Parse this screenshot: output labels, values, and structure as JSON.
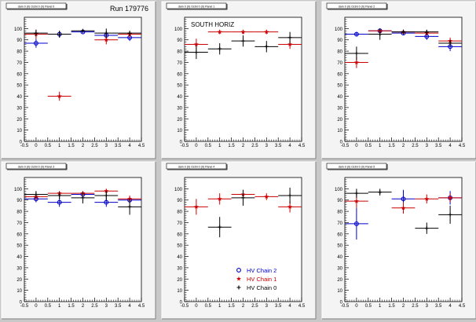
{
  "header": {
    "run_label": "Run 179776"
  },
  "chart_data": [
    {
      "type": "scatter",
      "pad_title": "dam 0 (0) Octnt 0 (0) Panel 0",
      "annotation": "",
      "xlim": [
        -0.5,
        4.5
      ],
      "ylim": [
        0,
        110
      ],
      "xticks": [
        "-0.5",
        "0",
        "0.5",
        "1",
        "1.5",
        "2",
        "2.5",
        "3",
        "3.5",
        "4",
        "4.5"
      ],
      "yticks": [
        "0",
        "10",
        "20",
        "30",
        "40",
        "50",
        "60",
        "70",
        "80",
        "90",
        "100"
      ],
      "grid": false,
      "series": [
        {
          "color": "#0000cc",
          "marker": "circle",
          "points": [
            {
              "x": 0,
              "y": 87,
              "xerr": 0.5,
              "yerr": 4
            },
            {
              "x": 1,
              "y": 95,
              "xerr": 0.5,
              "yerr": 3
            },
            {
              "x": 2,
              "y": 97,
              "xerr": 0.5,
              "yerr": 1
            },
            {
              "x": 3,
              "y": 94,
              "xerr": 0.5,
              "yerr": 3
            },
            {
              "x": 4,
              "y": 92,
              "xerr": 0.5,
              "yerr": 3
            }
          ]
        },
        {
          "color": "#cc0000",
          "marker": "star",
          "points": [
            {
              "x": 0,
              "y": 95,
              "xerr": 0.5,
              "yerr": 4
            },
            {
              "x": 1,
              "y": 40,
              "xerr": 0.5,
              "yerr": 4
            },
            {
              "x": 3,
              "y": 90,
              "xerr": 0.5,
              "yerr": 4
            },
            {
              "x": 4,
              "y": 95,
              "xerr": 0.5,
              "yerr": 3
            }
          ]
        },
        {
          "color": "#000000",
          "marker": "cross",
          "points": [
            {
              "x": 0,
              "y": 96,
              "xerr": 0.5,
              "yerr": 3
            },
            {
              "x": 1,
              "y": 95,
              "xerr": 0.5,
              "yerr": 3
            },
            {
              "x": 2,
              "y": 98,
              "xerr": 0.5,
              "yerr": 1
            },
            {
              "x": 3,
              "y": 96,
              "xerr": 0.5,
              "yerr": 4
            },
            {
              "x": 4,
              "y": 96,
              "xerr": 0.5,
              "yerr": 2
            }
          ]
        }
      ]
    },
    {
      "type": "scatter",
      "pad_title": "dam 0 (0) Octnt 0 (0) Panel 1",
      "annotation": "SOUTH HORIZ",
      "xlim": [
        -0.5,
        4.5
      ],
      "ylim": [
        0,
        110
      ],
      "xticks": [
        "-0.5",
        "0",
        "0.5",
        "1",
        "1.5",
        "2",
        "2.5",
        "3",
        "3.5",
        "4",
        "4.5"
      ],
      "yticks": [
        "0",
        "10",
        "20",
        "30",
        "40",
        "50",
        "60",
        "70",
        "80",
        "90",
        "100"
      ],
      "grid": false,
      "series": [
        {
          "color": "#cc0000",
          "marker": "star",
          "points": [
            {
              "x": 0,
              "y": 86,
              "xerr": 0.5,
              "yerr": 5
            },
            {
              "x": 1,
              "y": 97,
              "xerr": 0.5,
              "yerr": 2
            },
            {
              "x": 2,
              "y": 97,
              "xerr": 0.5,
              "yerr": 2
            },
            {
              "x": 3,
              "y": 97,
              "xerr": 0.5,
              "yerr": 2
            },
            {
              "x": 4,
              "y": 86,
              "xerr": 0.5,
              "yerr": 4
            }
          ]
        },
        {
          "color": "#000000",
          "marker": "cross",
          "points": [
            {
              "x": 0,
              "y": 79,
              "xerr": 0.5,
              "yerr": 6
            },
            {
              "x": 1,
              "y": 82,
              "xerr": 0.5,
              "yerr": 5
            },
            {
              "x": 2,
              "y": 89,
              "xerr": 0.5,
              "yerr": 5
            },
            {
              "x": 3,
              "y": 84,
              "xerr": 0.5,
              "yerr": 5
            },
            {
              "x": 4,
              "y": 92,
              "xerr": 0.5,
              "yerr": 5
            }
          ]
        }
      ]
    },
    {
      "type": "scatter",
      "pad_title": "dam 0 (0) Octnt 0 (0) Panel 2",
      "annotation": "",
      "xlim": [
        -0.5,
        4.5
      ],
      "ylim": [
        0,
        110
      ],
      "xticks": [
        "-0.5",
        "0",
        "0.5",
        "1",
        "1.5",
        "2",
        "2.5",
        "3",
        "3.5",
        "4",
        "4.5"
      ],
      "yticks": [
        "0",
        "10",
        "20",
        "30",
        "40",
        "50",
        "60",
        "70",
        "80",
        "90",
        "100"
      ],
      "grid": false,
      "series": [
        {
          "color": "#0000cc",
          "marker": "circle",
          "points": [
            {
              "x": 0,
              "y": 95,
              "xerr": 0.5,
              "yerr": 2
            },
            {
              "x": 1,
              "y": 98,
              "xerr": 0.5,
              "yerr": 2
            },
            {
              "x": 2,
              "y": 96,
              "xerr": 0.5,
              "yerr": 2
            },
            {
              "x": 3,
              "y": 93,
              "xerr": 0.5,
              "yerr": 3
            },
            {
              "x": 4,
              "y": 84,
              "xerr": 0.5,
              "yerr": 4
            }
          ]
        },
        {
          "color": "#cc0000",
          "marker": "star",
          "points": [
            {
              "x": 0,
              "y": 70,
              "xerr": 0.5,
              "yerr": 5
            },
            {
              "x": 1,
              "y": 98,
              "xerr": 0.5,
              "yerr": 2
            },
            {
              "x": 2,
              "y": 97,
              "xerr": 0.5,
              "yerr": 2
            },
            {
              "x": 3,
              "y": 96,
              "xerr": 0.5,
              "yerr": 2
            },
            {
              "x": 4,
              "y": 89,
              "xerr": 0.5,
              "yerr": 3
            }
          ]
        },
        {
          "color": "#000000",
          "marker": "cross",
          "points": [
            {
              "x": 0,
              "y": 78,
              "xerr": 0.5,
              "yerr": 6
            },
            {
              "x": 1,
              "y": 95,
              "xerr": 0.5,
              "yerr": 5
            },
            {
              "x": 2,
              "y": 97,
              "xerr": 0.5,
              "yerr": 2
            },
            {
              "x": 3,
              "y": 97,
              "xerr": 0.5,
              "yerr": 2
            },
            {
              "x": 4,
              "y": 87,
              "xerr": 0.5,
              "yerr": 3
            }
          ]
        }
      ]
    },
    {
      "type": "scatter",
      "pad_title": "dam 0 (0) Octnt 0 (0) Panel 3",
      "annotation": "",
      "xlim": [
        -0.5,
        4.5
      ],
      "ylim": [
        0,
        110
      ],
      "xticks": [
        "-0.5",
        "0",
        "0.5",
        "1",
        "1.5",
        "2",
        "2.5",
        "3",
        "3.5",
        "4",
        "4.5"
      ],
      "yticks": [
        "0",
        "10",
        "20",
        "30",
        "40",
        "50",
        "60",
        "70",
        "80",
        "90",
        "100"
      ],
      "grid": false,
      "series": [
        {
          "color": "#0000cc",
          "marker": "circle",
          "points": [
            {
              "x": 0,
              "y": 91,
              "xerr": 0.5,
              "yerr": 3
            },
            {
              "x": 1,
              "y": 88,
              "xerr": 0.5,
              "yerr": 4
            },
            {
              "x": 2,
              "y": 95,
              "xerr": 0.5,
              "yerr": 2
            },
            {
              "x": 3,
              "y": 88,
              "xerr": 0.5,
              "yerr": 4
            },
            {
              "x": 4,
              "y": 90,
              "xerr": 0.5,
              "yerr": 3
            }
          ]
        },
        {
          "color": "#cc0000",
          "marker": "star",
          "points": [
            {
              "x": 0,
              "y": 93,
              "xerr": 0.5,
              "yerr": 3
            },
            {
              "x": 1,
              "y": 96,
              "xerr": 0.5,
              "yerr": 2
            },
            {
              "x": 2,
              "y": 96,
              "xerr": 0.5,
              "yerr": 2
            },
            {
              "x": 3,
              "y": 98,
              "xerr": 0.5,
              "yerr": 2
            },
            {
              "x": 4,
              "y": 91,
              "xerr": 0.5,
              "yerr": 3
            }
          ]
        },
        {
          "color": "#000000",
          "marker": "cross",
          "points": [
            {
              "x": 0,
              "y": 95,
              "xerr": 0.5,
              "yerr": 3
            },
            {
              "x": 1,
              "y": 94,
              "xerr": 0.5,
              "yerr": 3
            },
            {
              "x": 2,
              "y": 92,
              "xerr": 0.5,
              "yerr": 5
            },
            {
              "x": 3,
              "y": 94,
              "xerr": 0.5,
              "yerr": 4
            },
            {
              "x": 4,
              "y": 84,
              "xerr": 0.5,
              "yerr": 7
            }
          ]
        }
      ]
    },
    {
      "type": "scatter",
      "pad_title": "dam 0 (0) Octnt 0 (0) Panel 4",
      "annotation": "",
      "xlim": [
        -0.5,
        4.5
      ],
      "ylim": [
        0,
        110
      ],
      "xticks": [
        "-0.5",
        "0",
        "0.5",
        "1",
        "1.5",
        "2",
        "2.5",
        "3",
        "3.5",
        "4",
        "4.5"
      ],
      "yticks": [
        "0",
        "10",
        "20",
        "30",
        "40",
        "50",
        "60",
        "70",
        "80",
        "90",
        "100"
      ],
      "grid": false,
      "legend": {
        "position": "bottom-right",
        "entries": [
          {
            "label": "HV Chain 2",
            "color": "#0000cc",
            "marker": "circle"
          },
          {
            "label": "HV Chain 1",
            "color": "#cc0000",
            "marker": "star"
          },
          {
            "label": "HV Chain 0",
            "color": "#000000",
            "marker": "cross"
          }
        ]
      },
      "series": [
        {
          "color": "#cc0000",
          "marker": "star",
          "points": [
            {
              "x": 0,
              "y": 84,
              "xerr": 0.5,
              "yerr": 7
            },
            {
              "x": 1,
              "y": 91,
              "xerr": 0.5,
              "yerr": 5
            },
            {
              "x": 2,
              "y": 95,
              "xerr": 0.5,
              "yerr": 4
            },
            {
              "x": 3,
              "y": 93,
              "xerr": 0.5,
              "yerr": 3
            },
            {
              "x": 4,
              "y": 84,
              "xerr": 0.5,
              "yerr": 5
            }
          ]
        },
        {
          "color": "#000000",
          "marker": "cross",
          "points": [
            {
              "x": 1,
              "y": 66,
              "xerr": 0.5,
              "yerr": 9
            },
            {
              "x": 2,
              "y": 92,
              "xerr": 0.5,
              "yerr": 7
            },
            {
              "x": 4,
              "y": 94,
              "xerr": 0.5,
              "yerr": 7
            }
          ]
        }
      ]
    },
    {
      "type": "scatter",
      "pad_title": "dam 0 (0) Octnt 0 (0) Panel 5",
      "annotation": "",
      "xlim": [
        -0.5,
        4.5
      ],
      "ylim": [
        0,
        110
      ],
      "xticks": [
        "-0.5",
        "0",
        "0.5",
        "1",
        "1.5",
        "2",
        "2.5",
        "3",
        "3.5",
        "4",
        "4.5"
      ],
      "yticks": [
        "0",
        "10",
        "20",
        "30",
        "40",
        "50",
        "60",
        "70",
        "80",
        "90",
        "100"
      ],
      "grid": false,
      "series": [
        {
          "color": "#0000cc",
          "marker": "circle",
          "points": [
            {
              "x": 0,
              "y": 69,
              "xerr": 0.5,
              "yerr": 14
            },
            {
              "x": 2,
              "y": 91,
              "xerr": 0.5,
              "yerr": 8
            },
            {
              "x": 4,
              "y": 92,
              "xerr": 0.5,
              "yerr": 6
            }
          ]
        },
        {
          "color": "#cc0000",
          "marker": "star",
          "points": [
            {
              "x": 0,
              "y": 89,
              "xerr": 0.5,
              "yerr": 6
            },
            {
              "x": 2,
              "y": 83,
              "xerr": 0.5,
              "yerr": 5
            },
            {
              "x": 3,
              "y": 91,
              "xerr": 0.5,
              "yerr": 4
            },
            {
              "x": 4,
              "y": 92,
              "xerr": 0.5,
              "yerr": 4
            }
          ]
        },
        {
          "color": "#000000",
          "marker": "cross",
          "points": [
            {
              "x": 0,
              "y": 96,
              "xerr": 0.5,
              "yerr": 4
            },
            {
              "x": 1,
              "y": 97,
              "xerr": 0.5,
              "yerr": 3
            },
            {
              "x": 3,
              "y": 65,
              "xerr": 0.5,
              "yerr": 5
            },
            {
              "x": 4,
              "y": 77,
              "xerr": 0.5,
              "yerr": 8
            }
          ]
        }
      ]
    }
  ]
}
